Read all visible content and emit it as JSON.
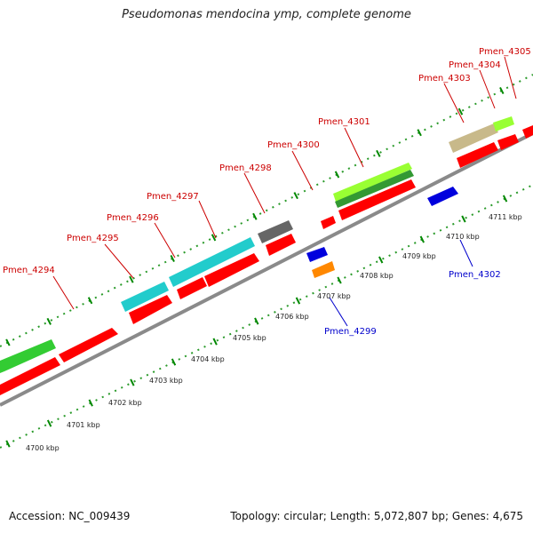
{
  "title": "Pseudomonas mendocina ymp, complete genome",
  "footer": {
    "accession": "Accession: NC_009439",
    "topology": "Topology: circular; Length: 5,072,807 bp; Genes: 4,675"
  },
  "scale_labels": [
    "4700 kbp",
    "4701 kbp",
    "4702 kbp",
    "4703 kbp",
    "4704 kbp",
    "4705 kbp",
    "4706 kbp",
    "4707 kbp",
    "4708 kbp",
    "4709 kbp",
    "4710 kbp",
    "4711 kbp"
  ],
  "gene_labels_forward": [
    "Pmen_4294",
    "Pmen_4295",
    "Pmen_4296",
    "Pmen_4297",
    "Pmen_4298",
    "Pmen_4300",
    "Pmen_4301",
    "Pmen_4303",
    "Pmen_4304",
    "Pmen_4305"
  ],
  "gene_labels_reverse": [
    "Pmen_4299",
    "Pmen_4302"
  ],
  "colors": {
    "cds": "#ff0000",
    "cog_green": "#33cc33",
    "cog_cyan": "#22cccc",
    "cog_gray": "#666666",
    "cog_lime": "#99ff33",
    "cog_tan": "#c8b98a",
    "blue": "#0000dd",
    "orange": "#ff8800",
    "backbone": "#888888",
    "tick": "#008800",
    "label_red": "#cc0000",
    "label_blue": "#0000cc"
  }
}
